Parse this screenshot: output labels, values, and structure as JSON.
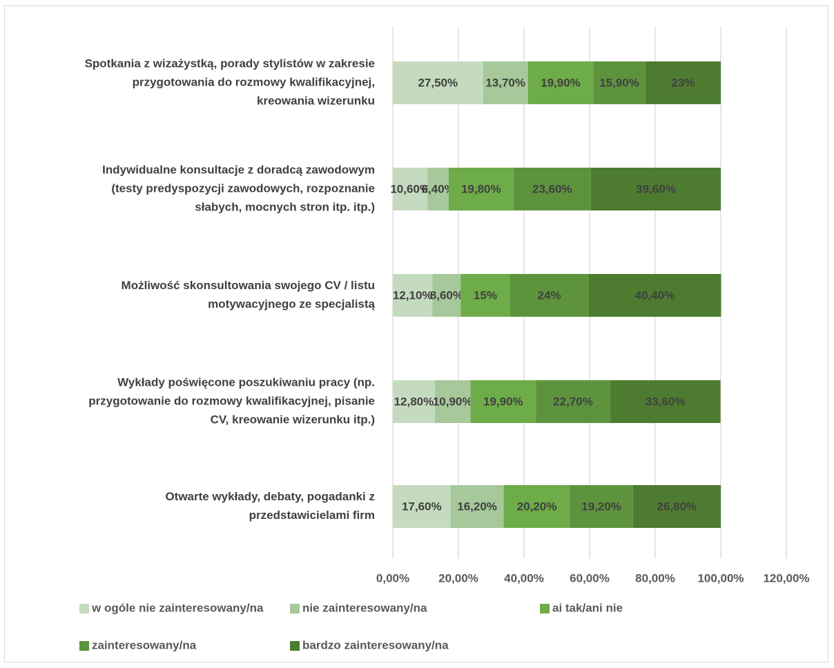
{
  "chart_data": {
    "type": "bar",
    "orientation": "horizontal",
    "stacked": true,
    "categories": [
      [
        "Spotkania z wizażystką, porady stylistów w zakresie",
        "przygotowania do rozmowy kwalifikacyjnej,",
        "kreowania wizerunku"
      ],
      [
        "Indywidualne konsultacje z doradcą zawodowym",
        "(testy predyspozycji zawodowych, rozpoznanie",
        "słabych, mocnych stron itp. itp.)"
      ],
      [
        "Możliwość skonsultowania swojego CV / listu",
        "motywacyjnego ze specjalistą"
      ],
      [
        "Wykłady poświęcone poszukiwaniu pracy (np.",
        "przygotowanie do rozmowy kwalifikacyjnej, pisanie",
        "CV, kreowanie wizerunku itp.)"
      ],
      [
        "Otwarte wykłady, debaty, pogadanki z",
        "przedstawicielami firm"
      ]
    ],
    "series": [
      {
        "name": "w ogóle nie zainteresowany/na",
        "color": "#c5dbbf",
        "values": [
          27.5,
          10.6,
          12.1,
          12.8,
          17.6
        ],
        "labels": [
          "27,50%",
          "10,60%",
          "12,10%",
          "12,80%",
          "17,60%"
        ]
      },
      {
        "name": "nie zainteresowany/na",
        "color": "#a6c89a",
        "values": [
          13.7,
          6.4,
          8.6,
          10.9,
          16.2
        ],
        "labels": [
          "13,70%",
          "6,40%",
          "8,60%",
          "10,90%",
          "16,20%"
        ]
      },
      {
        "name": "ai tak/ani nie",
        "color": "#6eab49",
        "values": [
          19.9,
          19.8,
          15.0,
          19.9,
          20.2
        ],
        "labels": [
          "19,90%",
          "19,80%",
          "15%",
          "19,90%",
          "20,20%"
        ]
      },
      {
        "name": "zainteresowany/na",
        "color": "#5e933e",
        "values": [
          15.9,
          23.6,
          24.0,
          22.7,
          19.2
        ],
        "labels": [
          "15,90%",
          "23,60%",
          "24%",
          "22,70%",
          "19,20%"
        ]
      },
      {
        "name": "bardzo zainteresowany/na",
        "color": "#4d7c30",
        "values": [
          23.0,
          39.6,
          40.4,
          33.6,
          26.8
        ],
        "labels": [
          "23%",
          "39,60%",
          "40,40%",
          "33,60%",
          "26,80%"
        ]
      }
    ],
    "xlim": [
      0,
      120
    ],
    "xticks": [
      0,
      20,
      40,
      60,
      80,
      100,
      120
    ],
    "xtick_labels": [
      "0,00%",
      "20,00%",
      "40,00%",
      "60,00%",
      "80,00%",
      "100,00%",
      "120,00%"
    ],
    "grid": true,
    "legend_position": "bottom"
  }
}
